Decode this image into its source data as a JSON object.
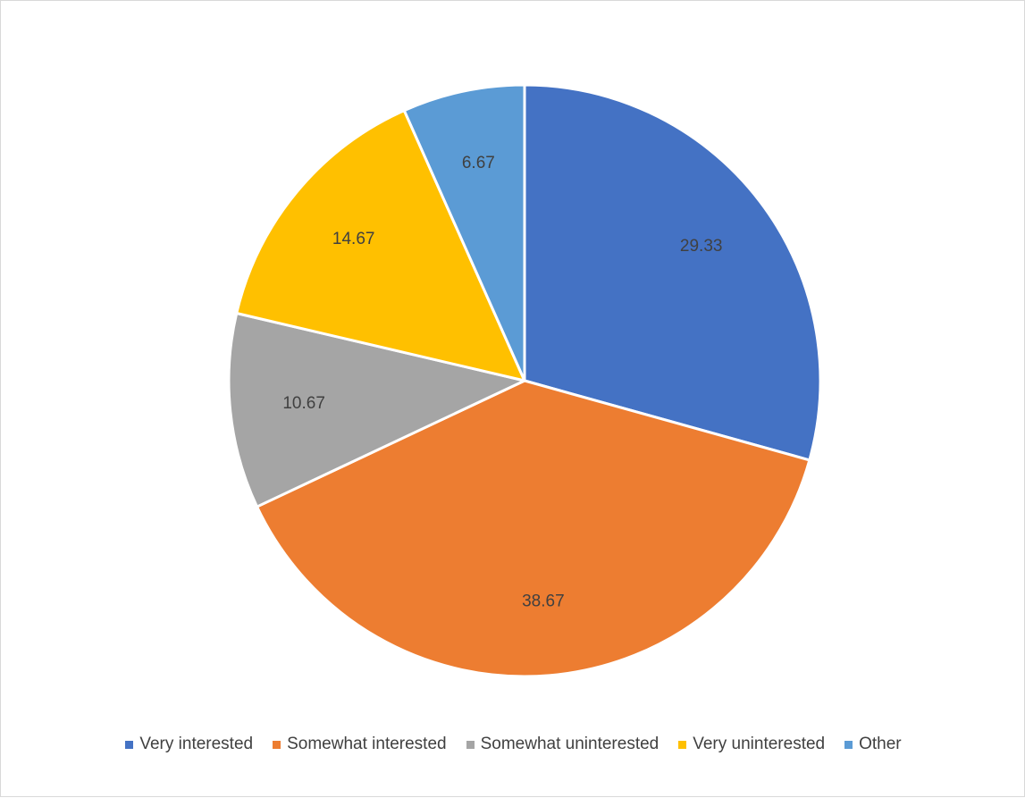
{
  "chart_data": {
    "type": "pie",
    "categories": [
      "Very interested",
      "Somewhat interested",
      "Somewhat uninterested",
      "Very uninterested",
      "Other"
    ],
    "values": [
      29.33,
      38.67,
      10.67,
      14.67,
      6.67
    ],
    "value_labels": [
      "29.33",
      "38.67",
      "10.67",
      "14.67",
      "6.67"
    ],
    "colors": [
      "#4472C4",
      "#ED7D31",
      "#A5A5A5",
      "#FFC000",
      "#5B9BD5"
    ],
    "start_angle_deg": 0,
    "direction": "clockwise",
    "legend_position": "bottom",
    "title": ""
  },
  "legend": {
    "items": [
      {
        "label": "Very interested",
        "color": "#4472C4"
      },
      {
        "label": "Somewhat interested",
        "color": "#ED7D31"
      },
      {
        "label": "Somewhat uninterested",
        "color": "#A5A5A5"
      },
      {
        "label": "Very uninterested",
        "color": "#FFC000"
      },
      {
        "label": "Other",
        "color": "#5B9BD5"
      }
    ]
  }
}
